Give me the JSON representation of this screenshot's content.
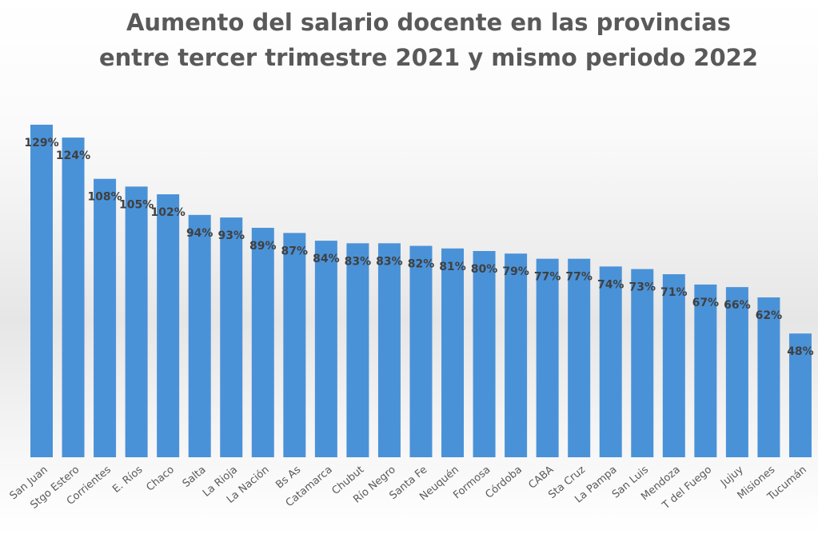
{
  "chart_data": {
    "type": "bar",
    "title": [
      "Aumento del salario docente en las provincias",
      "entre tercer trimestre 2021 y mismo periodo 2022"
    ],
    "categories": [
      "San Juan",
      "Stgo Estero",
      "Corrientes",
      "E. Ríos",
      "Chaco",
      "Salta",
      "La Rioja",
      "La Nación",
      "Bs As",
      "Catamarca",
      "Chubut",
      "Río Negro",
      "Santa Fe",
      "Neuquén",
      "Formosa",
      "Córdoba",
      "CABA",
      "Sta Cruz",
      "La Pampa",
      "San Luis",
      "Mendoza",
      "T del Fuego",
      "Jujuy",
      "Misiones",
      "Tucumán"
    ],
    "values": [
      129,
      124,
      108,
      105,
      102,
      94,
      93,
      89,
      87,
      84,
      83,
      83,
      82,
      81,
      80,
      79,
      77,
      77,
      74,
      73,
      71,
      67,
      66,
      62,
      48
    ],
    "value_labels": [
      "129%",
      "124%",
      "108%",
      "105%",
      "102%",
      "94%",
      "93%",
      "89%",
      "87%",
      "84%",
      "83%",
      "83%",
      "82%",
      "81%",
      "80%",
      "79%",
      "77%",
      "77%",
      "74%",
      "73%",
      "71%",
      "67%",
      "66%",
      "62%",
      "48%"
    ],
    "color": "#4a92d8",
    "ylim": [
      0,
      140
    ]
  }
}
